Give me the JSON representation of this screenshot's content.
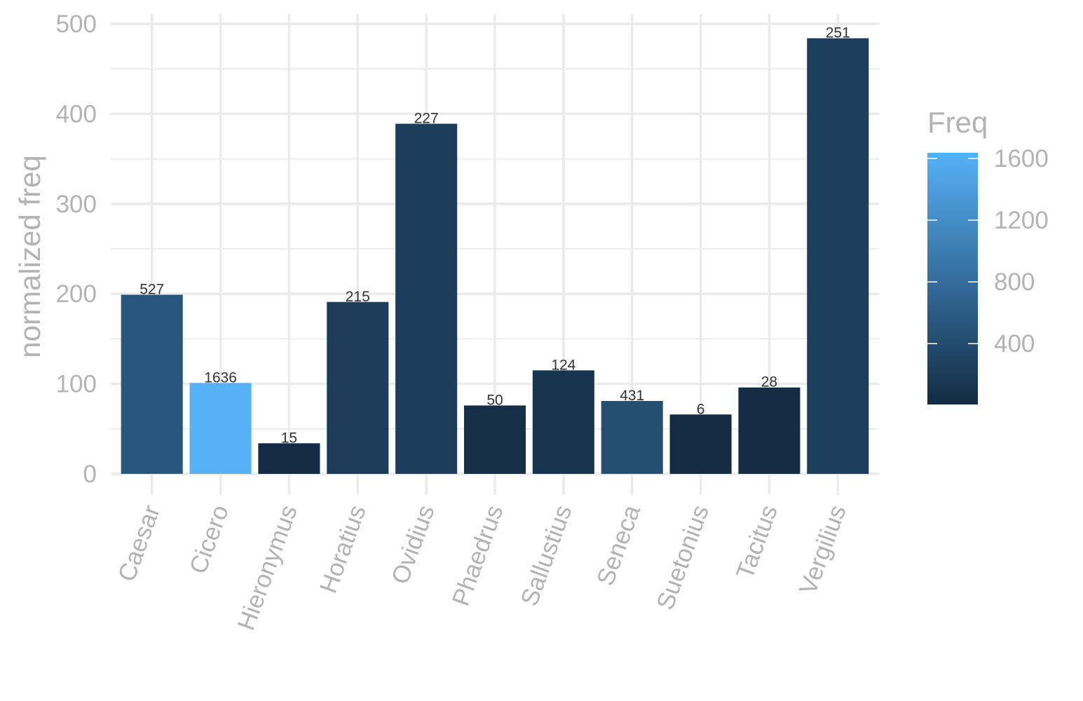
{
  "chart_data": {
    "type": "bar",
    "categories": [
      "Caesar",
      "Cicero",
      "Hieronymus",
      "Horatius",
      "Ovidius",
      "Phaedrus",
      "Sallustius",
      "Seneca",
      "Suetonius",
      "Tacitus",
      "Vergilius"
    ],
    "values": [
      199,
      101,
      34,
      191,
      389,
      76,
      115,
      81,
      66,
      96,
      484
    ],
    "labels": [
      "527",
      "1636",
      "15",
      "215",
      "227",
      "50",
      "124",
      "431",
      "6",
      "28",
      "251"
    ],
    "freq": [
      527,
      1636,
      15,
      215,
      227,
      50,
      124,
      431,
      6,
      28,
      251
    ],
    "title": "",
    "xlabel": "",
    "ylabel": "normalized freq",
    "ylim": [
      0,
      500
    ],
    "yticks": [
      0,
      100,
      200,
      300,
      400,
      500
    ],
    "grid": true,
    "legend": {
      "title": "Freq",
      "position": "right",
      "ticks": [
        400,
        800,
        1200,
        1600
      ],
      "range": [
        6,
        1636
      ],
      "color_low": "#132B43",
      "color_high": "#56B1F7"
    }
  }
}
